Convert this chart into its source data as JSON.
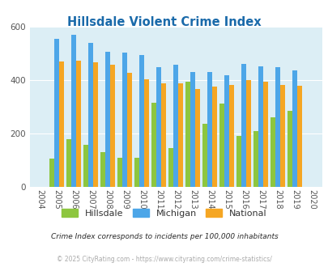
{
  "title": "Hillsdale Violent Crime Index",
  "title_color": "#1a6aaa",
  "years": [
    "2004",
    "2005",
    "2006",
    "2007",
    "2008",
    "2009",
    "2010",
    "2011",
    "2012",
    "2013",
    "2014",
    "2015",
    "2016",
    "2017",
    "2018",
    "2019",
    "2020"
  ],
  "hillsdale": [
    0,
    105,
    180,
    158,
    130,
    108,
    108,
    315,
    145,
    395,
    235,
    312,
    190,
    210,
    260,
    285,
    0
  ],
  "michigan": [
    0,
    555,
    570,
    540,
    505,
    502,
    495,
    448,
    458,
    430,
    430,
    417,
    462,
    453,
    450,
    437,
    0
  ],
  "national": [
    0,
    470,
    473,
    468,
    458,
    428,
    404,
    388,
    388,
    367,
    375,
    383,
    399,
    395,
    382,
    378,
    0
  ],
  "hillsdale_color": "#8dc63f",
  "michigan_color": "#4da6e8",
  "national_color": "#f5a623",
  "bg_color": "#dceef5",
  "ylim": [
    0,
    600
  ],
  "yticks": [
    0,
    200,
    400,
    600
  ],
  "subtitle": "Crime Index corresponds to incidents per 100,000 inhabitants",
  "subtitle_color": "#2a2a2a",
  "footer": "© 2025 CityRating.com - https://www.cityrating.com/crime-statistics/",
  "footer_color": "#aaaaaa",
  "legend_labels": [
    "Hillsdale",
    "Michigan",
    "National"
  ]
}
